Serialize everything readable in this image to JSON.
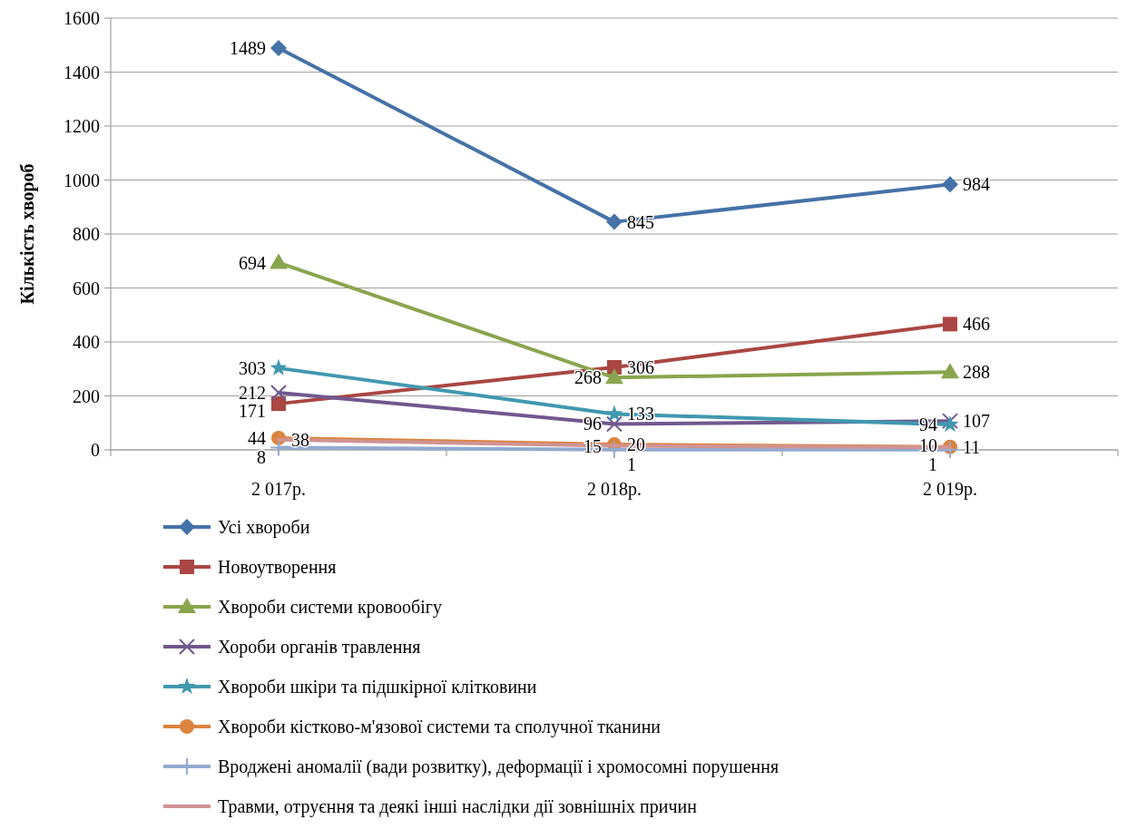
{
  "chart_data": {
    "type": "line",
    "ylabel": "Кількість хвороб",
    "categories": [
      "2 017р.",
      "2 018р.",
      "2 019р."
    ],
    "series": [
      {
        "name": "Усі хвороби",
        "color": "#4572a7",
        "marker": "diamond",
        "values": [
          1489,
          845,
          984
        ]
      },
      {
        "name": "Новоутворення",
        "color": "#aa4643",
        "marker": "square",
        "values": [
          171,
          306,
          466
        ]
      },
      {
        "name": "Хвороби системи кровообігу",
        "color": "#89a54e",
        "marker": "triangle",
        "values": [
          694,
          268,
          288
        ]
      },
      {
        "name": "Хороби органів травлення",
        "color": "#71588f",
        "marker": "cross",
        "values": [
          212,
          96,
          107
        ]
      },
      {
        "name": "Хвороби шкіри та підшкірної клітковини",
        "color": "#4198af",
        "marker": "star",
        "values": [
          303,
          133,
          94
        ]
      },
      {
        "name": "Хвороби кістково-м'язової системи та сполучної тканини",
        "color": "#db843d",
        "marker": "circle",
        "values": [
          44,
          20,
          11
        ]
      },
      {
        "name": "Вроджені аномалії (вади розвитку), деформації і хромосомні порушення",
        "color": "#93a9cf",
        "marker": "plus",
        "values": [
          8,
          1,
          1
        ]
      },
      {
        "name": "Травми, отруєння та деякі інші наслідки дії зовнішніх причин",
        "color": "#d19392",
        "marker": "none",
        "values": [
          38,
          15,
          10
        ]
      }
    ],
    "ylim": [
      0,
      1600
    ],
    "yticks": [
      0,
      200,
      400,
      600,
      800,
      1000,
      1200,
      1400,
      1600
    ],
    "grid": "y",
    "legend": "bottom",
    "data_labels": true
  }
}
